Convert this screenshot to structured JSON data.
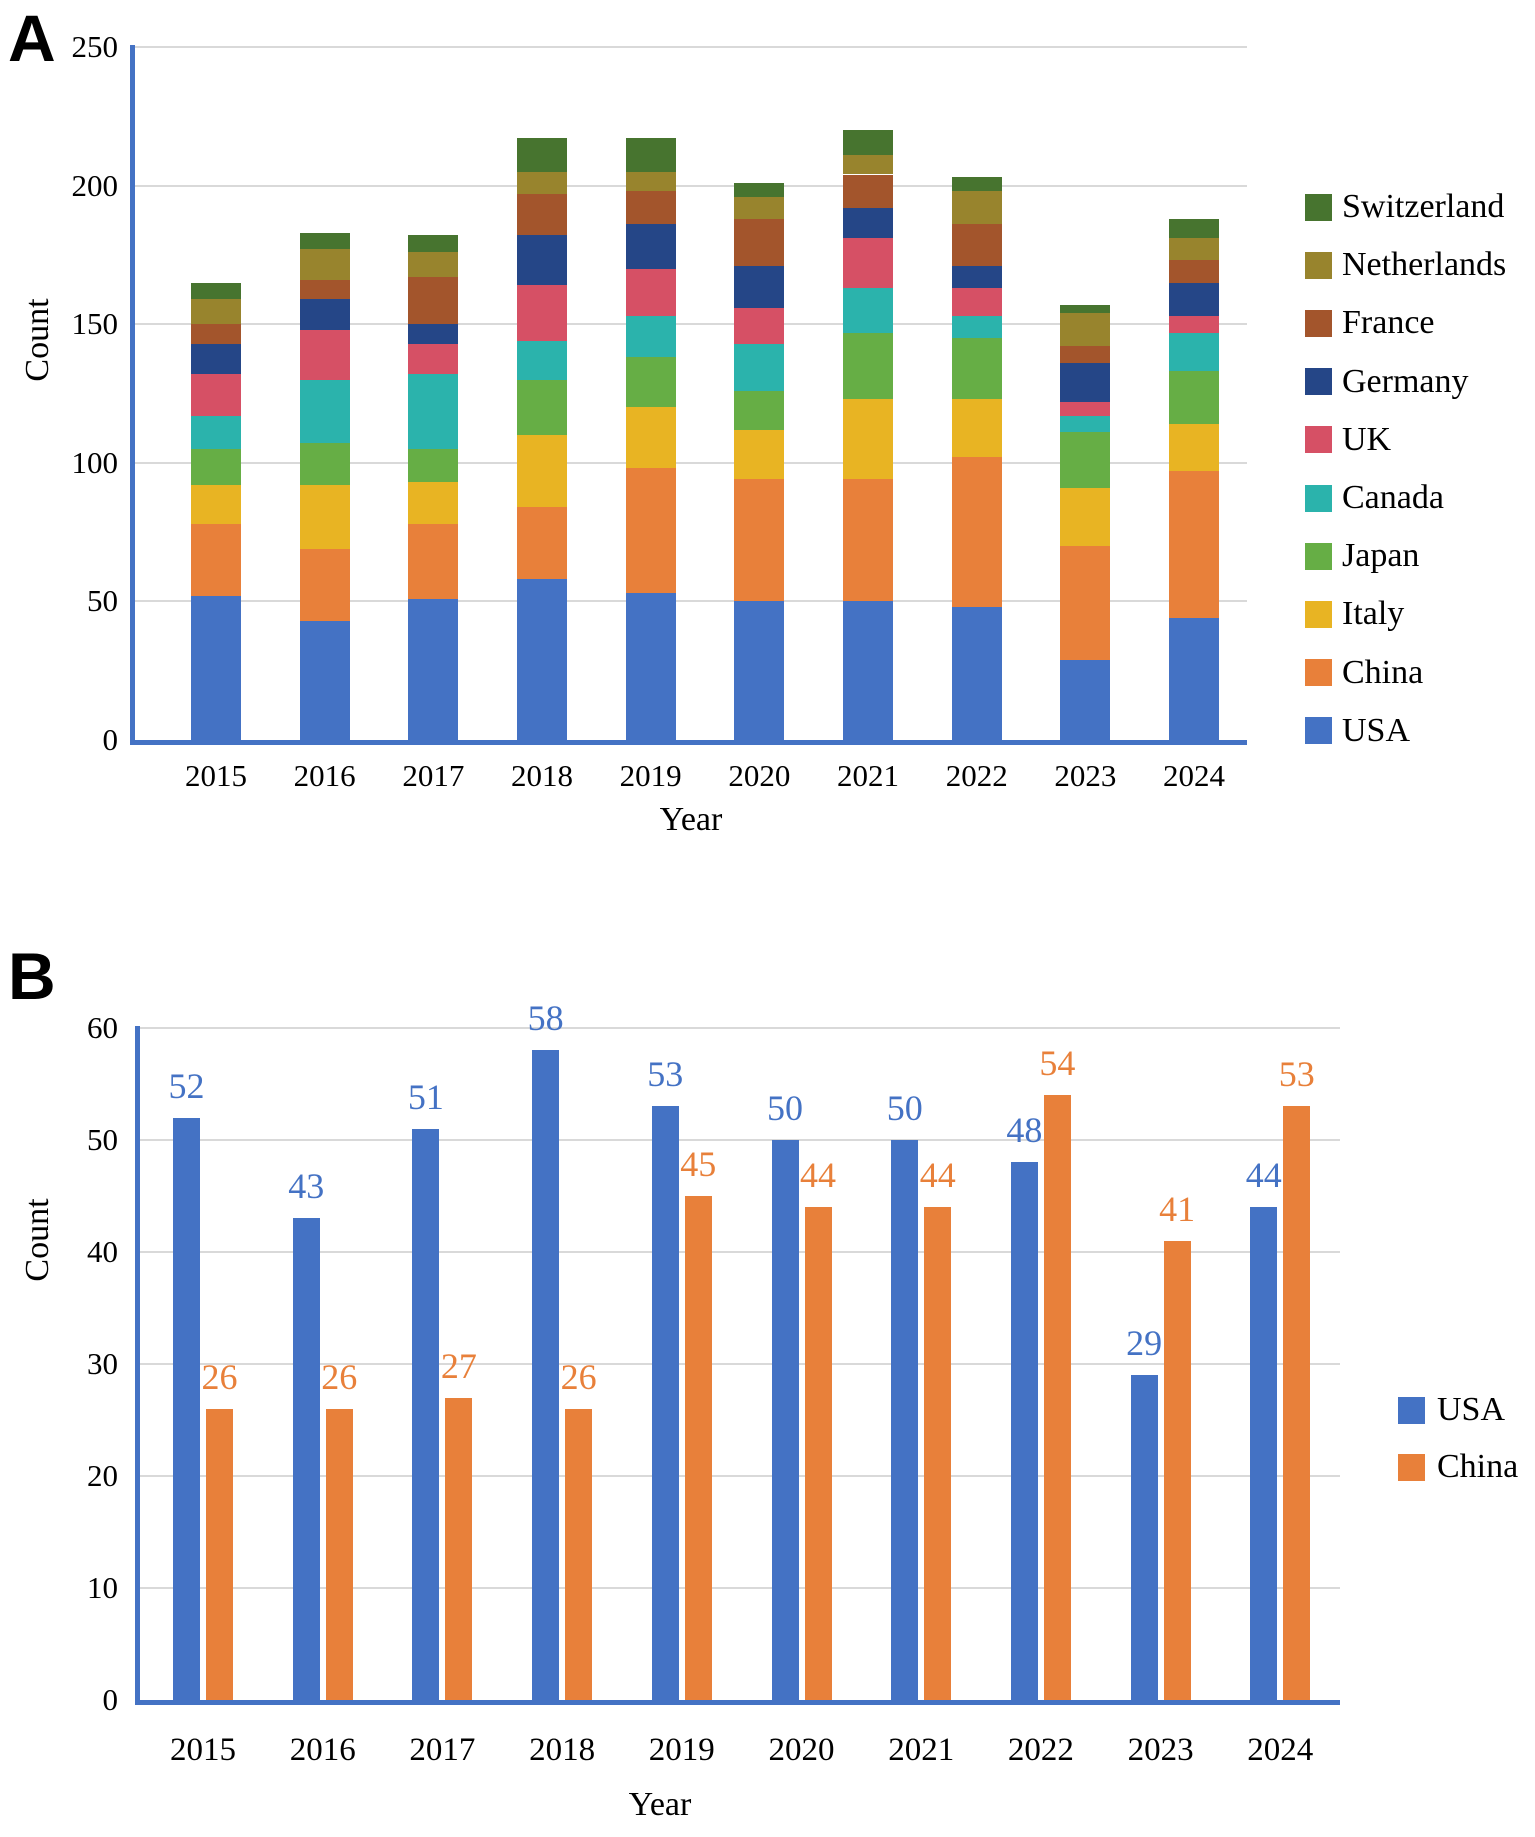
{
  "panels": [
    {
      "letter": "A"
    },
    {
      "letter": "B"
    }
  ],
  "chart_data": [
    {
      "id": "A",
      "type": "bar",
      "stacked": true,
      "xlabel": "Year",
      "ylabel": "Count",
      "ylim": [
        0,
        250
      ],
      "yticks": [
        0,
        50,
        100,
        150,
        200,
        250
      ],
      "grid": true,
      "legend_position": "right",
      "categories": [
        "2015",
        "2016",
        "2017",
        "2018",
        "2019",
        "2020",
        "2021",
        "2022",
        "2023",
        "2024"
      ],
      "series": [
        {
          "name": "USA",
          "color": "#4472C4",
          "values": [
            52,
            43,
            51,
            58,
            53,
            50,
            50,
            48,
            29,
            44
          ]
        },
        {
          "name": "China",
          "color": "#E8803A",
          "values": [
            26,
            26,
            27,
            26,
            45,
            44,
            44,
            54,
            41,
            53
          ]
        },
        {
          "name": "Italy",
          "color": "#E8B423",
          "values": [
            14,
            23,
            15,
            26,
            22,
            18,
            29,
            21,
            21,
            17
          ]
        },
        {
          "name": "Japan",
          "color": "#66AE45",
          "values": [
            13,
            15,
            12,
            20,
            18,
            14,
            24,
            22,
            20,
            19
          ]
        },
        {
          "name": "Canada",
          "color": "#2BB3AC",
          "values": [
            12,
            23,
            27,
            14,
            15,
            17,
            16,
            8,
            6,
            14
          ]
        },
        {
          "name": "UK",
          "color": "#D65065",
          "values": [
            15,
            18,
            11,
            20,
            17,
            13,
            18,
            10,
            5,
            6
          ]
        },
        {
          "name": "Germany",
          "color": "#254687",
          "values": [
            11,
            11,
            7,
            18,
            16,
            15,
            11,
            8,
            14,
            12
          ]
        },
        {
          "name": "France",
          "color": "#A3552C",
          "values": [
            7,
            7,
            17,
            15,
            12,
            17,
            12,
            15,
            6,
            8
          ]
        },
        {
          "name": "Netherlands",
          "color": "#98842D",
          "values": [
            9,
            11,
            9,
            8,
            7,
            8,
            7,
            12,
            12,
            8
          ]
        },
        {
          "name": "Switzerland",
          "color": "#47742F",
          "values": [
            6,
            6,
            6,
            12,
            12,
            5,
            9,
            5,
            3,
            7
          ]
        }
      ],
      "legend_order": [
        "Switzerland",
        "Netherlands",
        "France",
        "Germany",
        "UK",
        "Canada",
        "Japan",
        "Italy",
        "China",
        "USA"
      ]
    },
    {
      "id": "B",
      "type": "bar",
      "grouped": true,
      "data_labels": true,
      "xlabel": "Year",
      "ylabel": "Count",
      "ylim": [
        0,
        60
      ],
      "yticks": [
        0,
        10,
        20,
        30,
        40,
        50,
        60
      ],
      "grid": true,
      "legend_position": "right",
      "categories": [
        "2015",
        "2016",
        "2017",
        "2018",
        "2019",
        "2020",
        "2021",
        "2022",
        "2023",
        "2024"
      ],
      "series": [
        {
          "name": "USA",
          "color": "#4472C4",
          "values": [
            52,
            43,
            51,
            58,
            53,
            50,
            50,
            48,
            29,
            44
          ]
        },
        {
          "name": "China",
          "color": "#E8803A",
          "values": [
            26,
            26,
            27,
            26,
            45,
            44,
            44,
            54,
            41,
            53
          ]
        }
      ],
      "legend_order": [
        "USA",
        "China"
      ]
    }
  ],
  "colors": {
    "axis": "#4472C4",
    "gridline": "#D9D9D9",
    "text": "#000000"
  }
}
